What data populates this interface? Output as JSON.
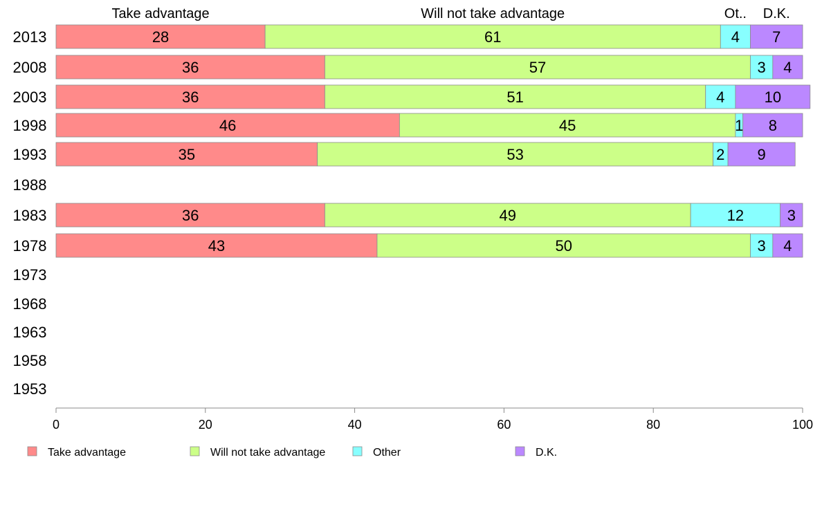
{
  "chart_data": {
    "type": "bar",
    "orientation": "horizontal",
    "stacked": true,
    "title": "",
    "xlabel": "",
    "ylabel": "",
    "xlim": [
      0,
      100
    ],
    "x_ticks": [
      0,
      20,
      40,
      60,
      80,
      100
    ],
    "categories": [
      "2013",
      "2008",
      "2003",
      "1998",
      "1993",
      "1988",
      "1983",
      "1978",
      "1973",
      "1968",
      "1963",
      "1958",
      "1953"
    ],
    "series": [
      {
        "name": "Take advantage",
        "color": "#ff8a8a",
        "values": [
          28,
          36,
          36,
          46,
          35,
          null,
          36,
          43,
          null,
          null,
          null,
          null,
          null
        ]
      },
      {
        "name": "Will not take advantage",
        "color": "#ccff88",
        "values": [
          61,
          57,
          51,
          45,
          53,
          null,
          49,
          50,
          null,
          null,
          null,
          null,
          null
        ]
      },
      {
        "name": "Other",
        "color": "#88ffff",
        "values": [
          4,
          3,
          4,
          1,
          2,
          null,
          12,
          3,
          null,
          null,
          null,
          null,
          null
        ]
      },
      {
        "name": "D.K.",
        "color": "#bb88ff",
        "values": [
          7,
          4,
          10,
          8,
          9,
          null,
          3,
          4,
          null,
          null,
          null,
          null,
          null
        ]
      }
    ],
    "top_labels": [
      "Take advantage",
      "Will not take advantage",
      "Ot..",
      "D.K."
    ],
    "legend_position": "bottom",
    "grid": false
  }
}
